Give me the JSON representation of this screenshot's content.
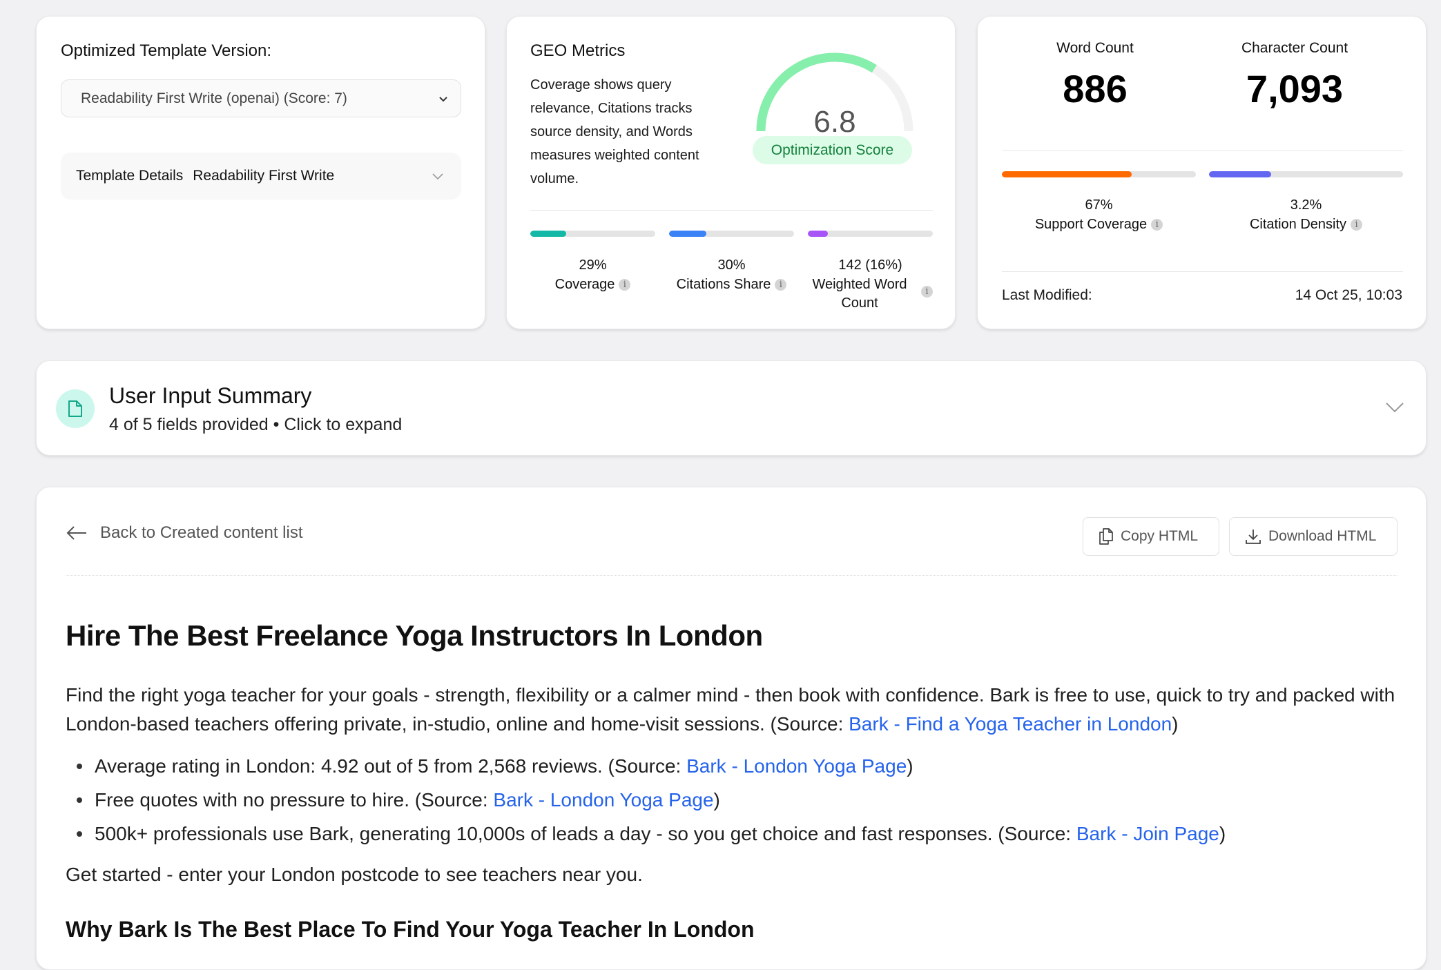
{
  "template_card": {
    "label": "Optimized Template Version:",
    "select_value": "Readability First Write (openai) (Score: 7)",
    "details_label": "Template Details",
    "details_value": "Readability First Write"
  },
  "geo_card": {
    "title": "GEO Metrics",
    "description": "Coverage shows query relevance, Citations tracks source density, and Words measures weighted content volume.",
    "score": "6.8",
    "score_fraction": 0.68,
    "score_label": "Optimization Score",
    "gauge_color": "#86efac",
    "metrics": [
      {
        "value": "29%",
        "label": "Coverage",
        "fill": 0.29,
        "color": "#14b8a6"
      },
      {
        "value": "30%",
        "label": "Citations Share",
        "fill": 0.3,
        "color": "#3b82f6"
      },
      {
        "value": "142 (16%)",
        "label": "Weighted Word Count",
        "fill": 0.16,
        "color": "#a855f7"
      }
    ]
  },
  "stats_card": {
    "word_count_label": "Word Count",
    "word_count": "886",
    "char_count_label": "Character Count",
    "char_count": "7,093",
    "metrics": [
      {
        "value": "67%",
        "label": "Support Coverage",
        "fill": 0.67,
        "color": "#ff6a00"
      },
      {
        "value": "3.2%",
        "label": "Citation Density",
        "fill": 0.32,
        "color": "#6366f1"
      }
    ],
    "last_modified_label": "Last Modified:",
    "last_modified": "14 Oct 25, 10:03"
  },
  "summary": {
    "title": "User Input Summary",
    "subtitle": "4 of 5 fields provided • Click to expand"
  },
  "content": {
    "back_label": "Back to Created content list",
    "copy_label": "Copy HTML",
    "download_label": "Download HTML",
    "h1": "Hire The Best Freelance Yoga Instructors In London",
    "intro": "Find the right yoga teacher for your goals - strength, flexibility or a calmer mind - then book with confidence. Bark is free to use, quick to try and packed with London-based teachers offering private, in-studio, online and home-visit sessions. (Source: ",
    "intro_link": "Bark - Find a Yoga Teacher in London",
    "intro_end": ")",
    "bullets": [
      {
        "text": "Average rating in London: 4.92 out of 5 from 2,568 reviews. (Source: ",
        "link": "Bark - London Yoga Page",
        "end": ")"
      },
      {
        "text": "Free quotes with no pressure to hire. (Source: ",
        "link": "Bark - London Yoga Page",
        "end": ")"
      },
      {
        "text": "500k+ professionals use Bark, generating 10,000s of leads a day - so you get choice and fast responses. (Source: ",
        "link": "Bark - Join Page",
        "end": ")"
      }
    ],
    "cta": "Get started - enter your London postcode to see teachers near you.",
    "h2": "Why Bark Is The Best Place To Find Your Yoga Teacher In London"
  }
}
